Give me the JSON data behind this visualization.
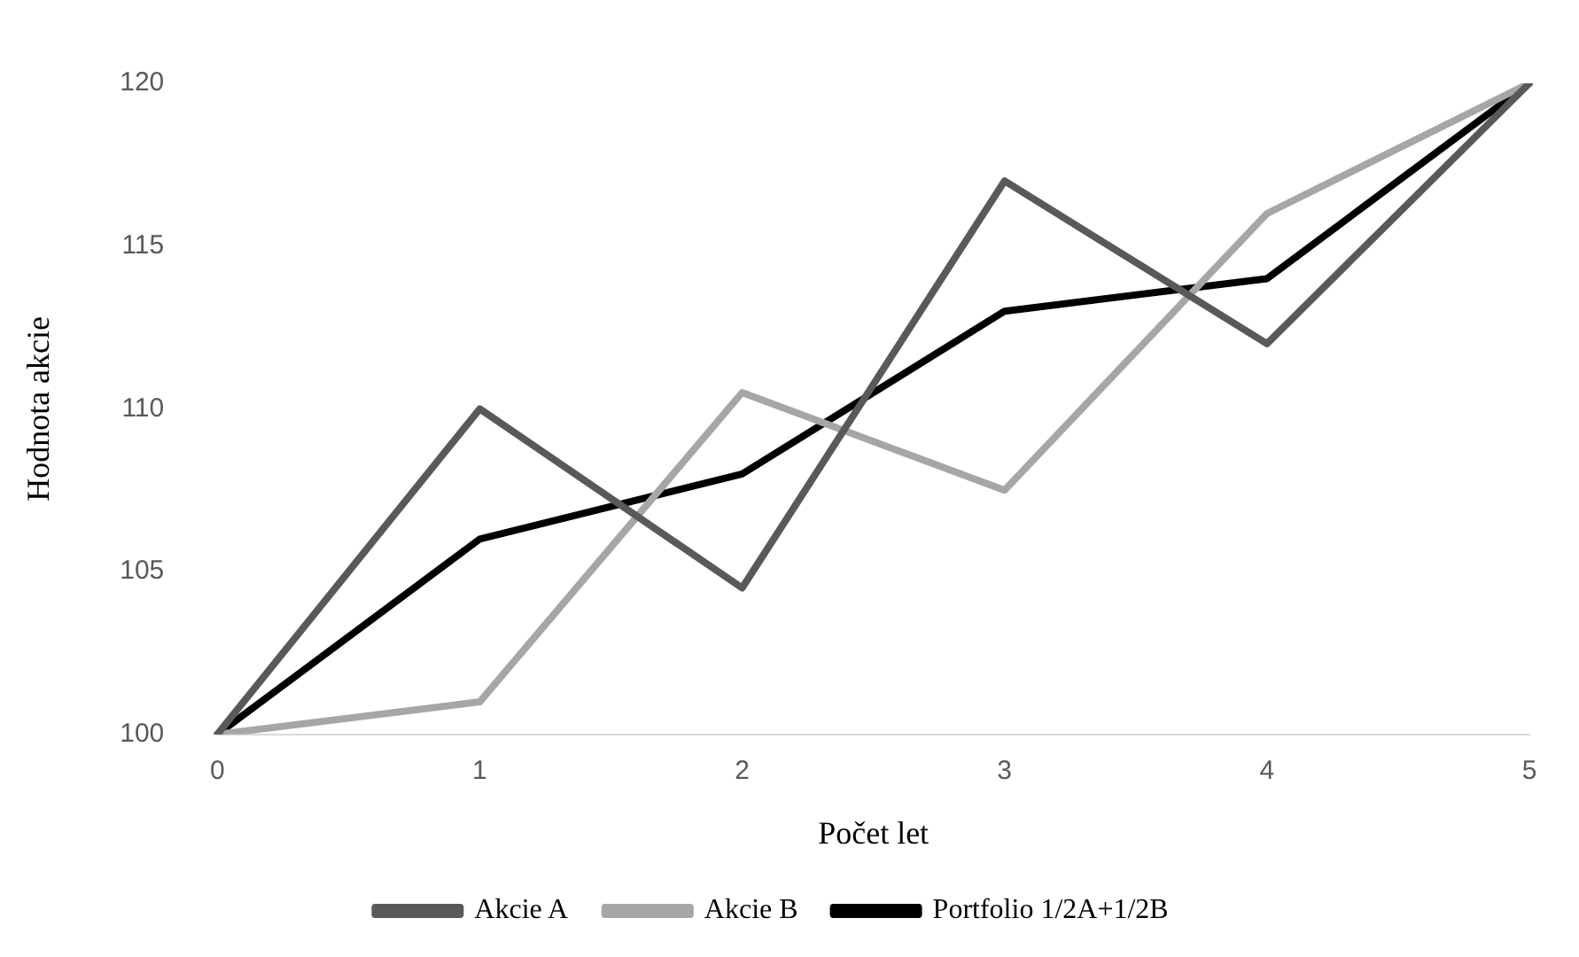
{
  "chart_data": {
    "type": "line",
    "xlabel": "Počet let",
    "ylabel": "Hodnota akcie",
    "categories": [
      "0",
      "1",
      "2",
      "3",
      "4",
      "5"
    ],
    "series": [
      {
        "name": "Akcie A",
        "color": "#595959",
        "values": [
          100,
          110,
          104.5,
          117,
          112,
          120
        ]
      },
      {
        "name": "Akcie B",
        "color": "#a6a6a6",
        "values": [
          100,
          101,
          110.5,
          107.5,
          116,
          120
        ]
      },
      {
        "name": "Portfolio 1/2A+1/2B",
        "color": "#000000",
        "values": [
          100,
          106,
          108,
          113,
          114,
          120
        ]
      }
    ],
    "ylim": [
      100,
      120
    ],
    "yticks": [
      100,
      105,
      110,
      115,
      120
    ],
    "grid": false,
    "legend": "bottom",
    "marker": "none",
    "line_style": "solid"
  }
}
